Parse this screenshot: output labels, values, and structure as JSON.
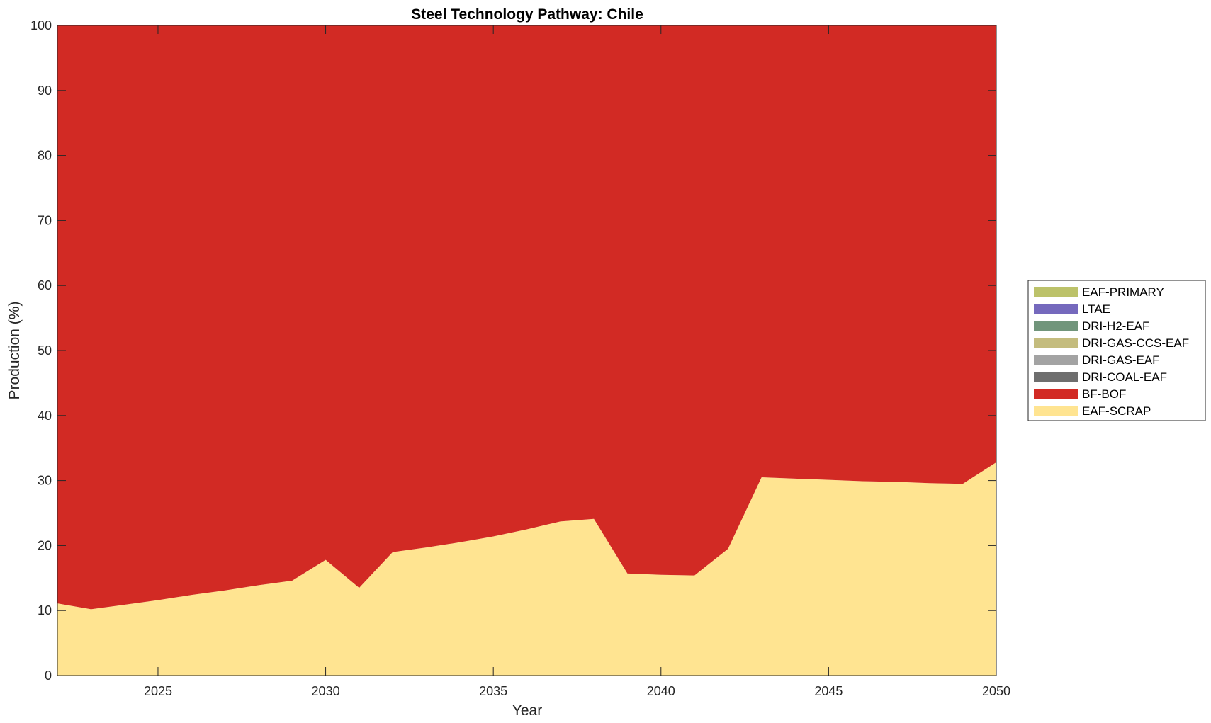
{
  "chart_data": {
    "type": "area",
    "stacked": true,
    "title": "Steel Technology Pathway: Chile",
    "xlabel": "Year",
    "ylabel": "Production (%)",
    "xlim": [
      2022,
      2050
    ],
    "ylim": [
      0,
      100
    ],
    "xticks": [
      2025,
      2030,
      2035,
      2040,
      2045,
      2050
    ],
    "yticks": [
      0,
      10,
      20,
      30,
      40,
      50,
      60,
      70,
      80,
      90,
      100
    ],
    "grid": false,
    "legend_position": "right-outside",
    "x": [
      2022,
      2023,
      2024,
      2025,
      2026,
      2027,
      2028,
      2029,
      2030,
      2031,
      2032,
      2033,
      2034,
      2035,
      2036,
      2037,
      2038,
      2039,
      2040,
      2041,
      2042,
      2043,
      2044,
      2045,
      2046,
      2047,
      2048,
      2049,
      2050
    ],
    "series": [
      {
        "name": "EAF-SCRAP",
        "color": "#FFE491",
        "values": [
          11.1,
          10.2,
          10.9,
          11.6,
          12.4,
          13.1,
          13.9,
          14.6,
          17.8,
          13.5,
          19.0,
          19.7,
          20.5,
          21.4,
          22.5,
          23.7,
          24.1,
          15.7,
          15.5,
          15.4,
          19.5,
          30.5,
          30.3,
          30.1,
          29.9,
          29.8,
          29.6,
          29.5,
          32.8
        ]
      },
      {
        "name": "BF-BOF",
        "color": "#D22A24",
        "values": [
          88.9,
          89.8,
          89.1,
          88.4,
          87.6,
          86.9,
          86.1,
          85.4,
          82.2,
          86.5,
          81.0,
          80.3,
          79.5,
          78.6,
          77.5,
          76.3,
          75.9,
          84.3,
          84.5,
          84.6,
          80.5,
          69.5,
          69.7,
          69.9,
          70.1,
          70.2,
          70.4,
          70.5,
          67.2
        ]
      },
      {
        "name": "DRI-COAL-EAF",
        "color": "#6E6E6E",
        "values": [
          0,
          0,
          0,
          0,
          0,
          0,
          0,
          0,
          0,
          0,
          0,
          0,
          0,
          0,
          0,
          0,
          0,
          0,
          0,
          0,
          0,
          0,
          0,
          0,
          0,
          0,
          0,
          0,
          0
        ]
      },
      {
        "name": "DRI-GAS-EAF",
        "color": "#A3A3A3",
        "values": [
          0,
          0,
          0,
          0,
          0,
          0,
          0,
          0,
          0,
          0,
          0,
          0,
          0,
          0,
          0,
          0,
          0,
          0,
          0,
          0,
          0,
          0,
          0,
          0,
          0,
          0,
          0,
          0,
          0
        ]
      },
      {
        "name": "DRI-GAS-CCS-EAF",
        "color": "#C4BC7E",
        "values": [
          0,
          0,
          0,
          0,
          0,
          0,
          0,
          0,
          0,
          0,
          0,
          0,
          0,
          0,
          0,
          0,
          0,
          0,
          0,
          0,
          0,
          0,
          0,
          0,
          0,
          0,
          0,
          0,
          0
        ]
      },
      {
        "name": "DRI-H2-EAF",
        "color": "#71957B",
        "values": [
          0,
          0,
          0,
          0,
          0,
          0,
          0,
          0,
          0,
          0,
          0,
          0,
          0,
          0,
          0,
          0,
          0,
          0,
          0,
          0,
          0,
          0,
          0,
          0,
          0,
          0,
          0,
          0,
          0
        ]
      },
      {
        "name": "LTAE",
        "color": "#7569BD",
        "values": [
          0,
          0,
          0,
          0,
          0,
          0,
          0,
          0,
          0,
          0,
          0,
          0,
          0,
          0,
          0,
          0,
          0,
          0,
          0,
          0,
          0,
          0,
          0,
          0,
          0,
          0,
          0,
          0,
          0
        ]
      },
      {
        "name": "EAF-PRIMARY",
        "color": "#BCC26A",
        "values": [
          0,
          0,
          0,
          0,
          0,
          0,
          0,
          0,
          0,
          0,
          0,
          0,
          0,
          0,
          0,
          0,
          0,
          0,
          0,
          0,
          0,
          0,
          0,
          0,
          0,
          0,
          0,
          0,
          0
        ]
      }
    ],
    "legend_order": [
      "EAF-PRIMARY",
      "LTAE",
      "DRI-H2-EAF",
      "DRI-GAS-CCS-EAF",
      "DRI-GAS-EAF",
      "DRI-COAL-EAF",
      "BF-BOF",
      "EAF-SCRAP"
    ]
  }
}
